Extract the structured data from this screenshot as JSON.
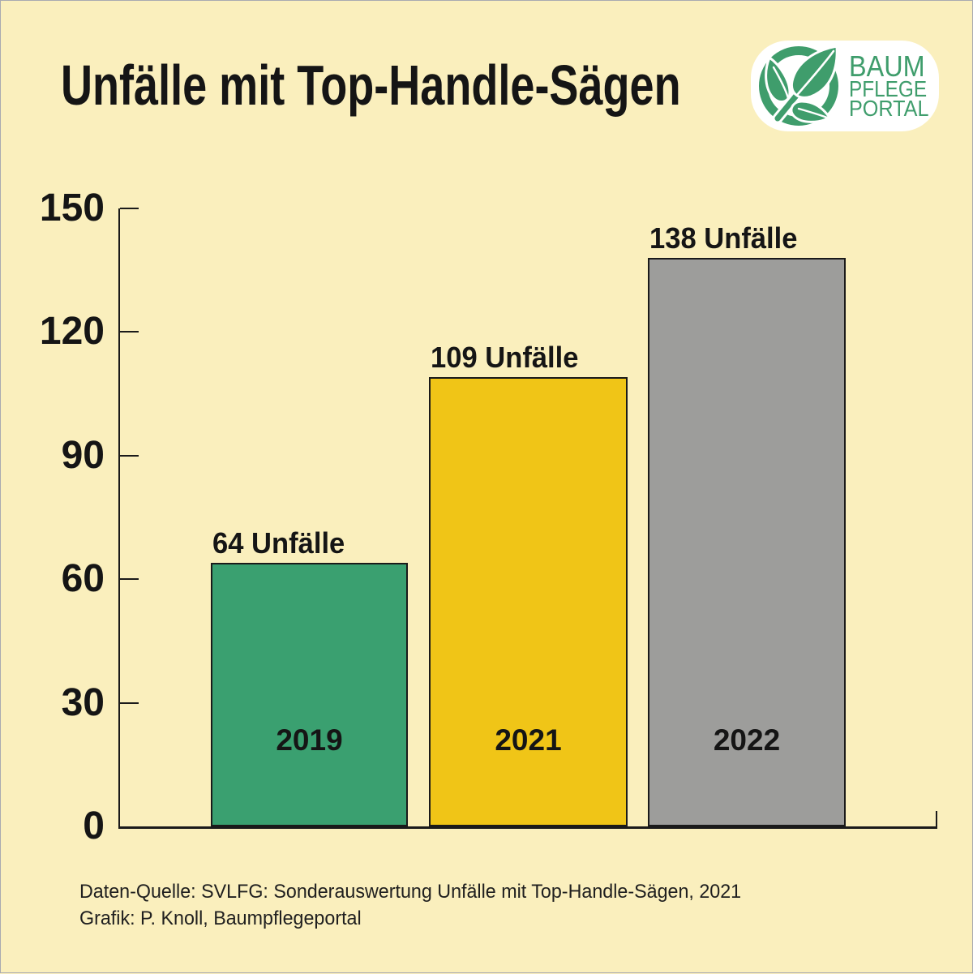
{
  "title": "Unfälle mit Top-Handle-Sägen",
  "logo": {
    "line1": "BAUM",
    "line2": "PFLEGE",
    "line3": "PORTAL",
    "icon": "leaf-circle-icon",
    "green": "#3f9d6c"
  },
  "footer": {
    "source_line": "Daten-Quelle: SVLFG: Sonderauswertung Unfälle mit Top-Handle-Sägen, 2021",
    "credit_line": "Grafik: P. Knoll, Baumpflegeportal"
  },
  "colors": {
    "background": "#faefbd",
    "axis": "#1a1a1a",
    "bar_2019": "#3aa070",
    "bar_2021": "#f0c517",
    "bar_2022": "#9d9d9b"
  },
  "chart_data": {
    "type": "bar",
    "title": "Unfälle mit Top-Handle-Sägen",
    "categories": [
      "2019",
      "2021",
      "2022"
    ],
    "values": [
      64,
      109,
      138
    ],
    "bar_labels": [
      "64 Unfälle",
      "109 Unfälle",
      "138 Unfälle"
    ],
    "bar_colors": [
      "#3aa070",
      "#f0c517",
      "#9d9d9b"
    ],
    "yticks": [
      0,
      30,
      60,
      90,
      120,
      150
    ],
    "ylim": [
      0,
      150
    ],
    "xlabel": "",
    "ylabel": "",
    "grid": false,
    "legend": false
  }
}
